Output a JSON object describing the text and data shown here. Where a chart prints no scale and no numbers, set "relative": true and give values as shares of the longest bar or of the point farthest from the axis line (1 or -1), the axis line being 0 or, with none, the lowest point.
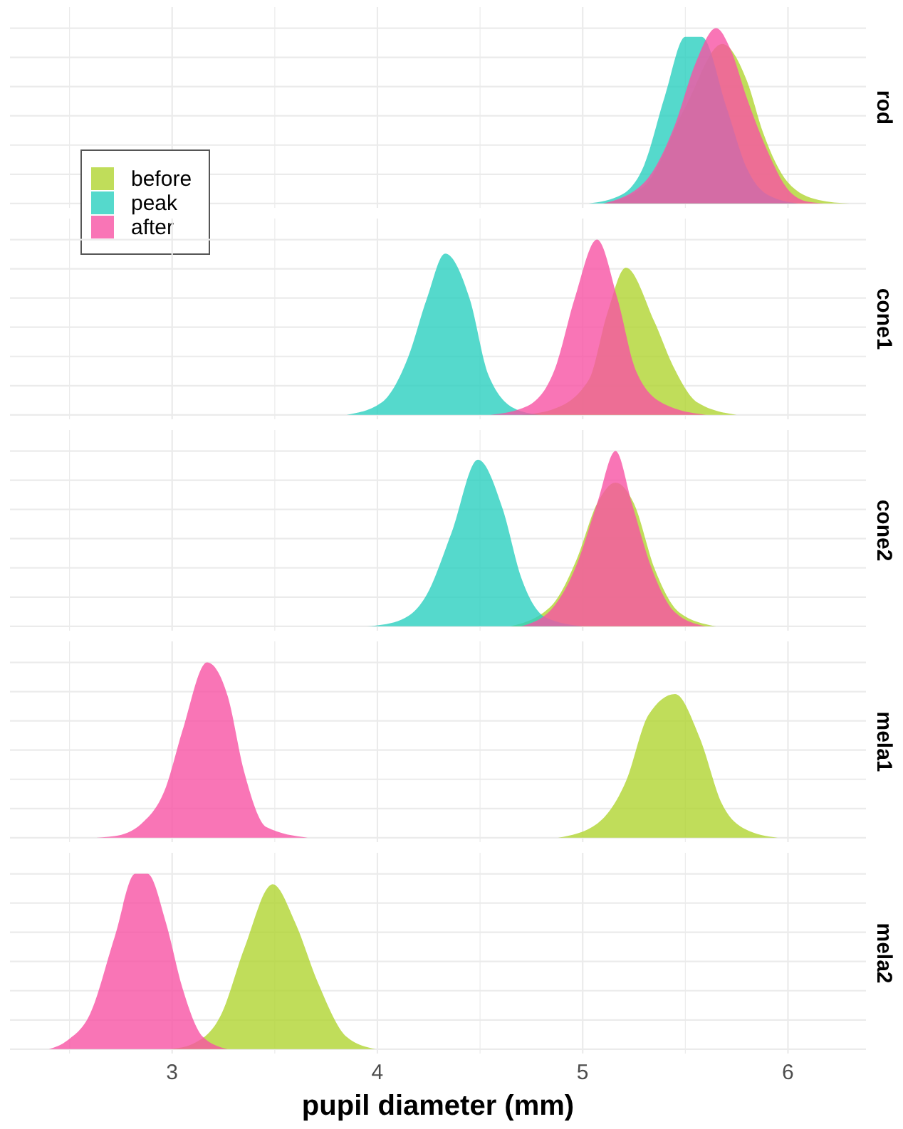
{
  "chart_data": [
    {
      "type": "area",
      "title": "rod",
      "relative": true,
      "xlim": [
        2.21,
        6.38
      ],
      "xticks": [
        {
          "value": 2.5,
          "label": null
        },
        3,
        {
          "value": 3.5,
          "label": null
        },
        4,
        {
          "value": 4.5,
          "label": null
        },
        5,
        {
          "value": 5.5,
          "label": null
        },
        6
      ],
      "grid": true,
      "tick_labels": false,
      "legend": "left",
      "series": [
        {
          "name": "before",
          "color": "#b0d531",
          "x": [
            5.1,
            5.3,
            5.5,
            5.68,
            5.8,
            5.88,
            6.0,
            6.15,
            6.3
          ],
          "values": [
            0,
            0.1,
            0.55,
            0.91,
            0.7,
            0.4,
            0.12,
            0.02,
            0
          ]
        },
        {
          "name": "peak",
          "color": "#2acfbf",
          "x": [
            5.03,
            5.19,
            5.3,
            5.4,
            5.5,
            5.58,
            5.7,
            5.8,
            5.9,
            6.05
          ],
          "values": [
            0,
            0.05,
            0.22,
            0.61,
            0.95,
            0.95,
            0.55,
            0.2,
            0.05,
            0
          ]
        },
        {
          "name": "after",
          "color": "#f752a4",
          "x": [
            5.1,
            5.3,
            5.45,
            5.55,
            5.65,
            5.72,
            5.8,
            5.9,
            6.0,
            6.1,
            6.2
          ],
          "values": [
            0,
            0.12,
            0.45,
            0.8,
            1,
            0.88,
            0.6,
            0.3,
            0.08,
            0.01,
            0
          ]
        }
      ]
    },
    {
      "type": "area",
      "title": "cone1",
      "relative": true,
      "xlim": [
        2.21,
        6.38
      ],
      "xticks": [
        {
          "value": 2.5,
          "label": null
        },
        3,
        {
          "value": 3.5,
          "label": null
        },
        4,
        {
          "value": 4.5,
          "label": null
        },
        5,
        {
          "value": 5.5,
          "label": null
        },
        6
      ],
      "grid": true,
      "tick_labels": false,
      "series": [
        {
          "color": "#b0d531",
          "x": [
            4.7,
            4.85,
            5.03,
            5.12,
            5.21,
            5.35,
            5.44,
            5.56,
            5.75
          ],
          "values": [
            0,
            0.03,
            0.2,
            0.58,
            0.84,
            0.53,
            0.28,
            0.07,
            0
          ]
        },
        {
          "color": "#2acfbf",
          "x": [
            3.85,
            4.02,
            4.15,
            4.24,
            4.33,
            4.45,
            4.54,
            4.68,
            4.8
          ],
          "values": [
            0,
            0.07,
            0.33,
            0.66,
            0.92,
            0.66,
            0.23,
            0.03,
            0
          ]
        },
        {
          "color": "#f752a4",
          "x": [
            4.55,
            4.73,
            4.87,
            4.96,
            5.07,
            5.17,
            5.26,
            5.4,
            5.6
          ],
          "values": [
            0,
            0.05,
            0.28,
            0.66,
            1,
            0.66,
            0.25,
            0.06,
            0
          ]
        }
      ]
    },
    {
      "type": "area",
      "title": "cone2",
      "relative": true,
      "xlim": [
        2.21,
        6.38
      ],
      "xticks": [
        {
          "value": 2.5,
          "label": null
        },
        3,
        {
          "value": 3.5,
          "label": null
        },
        4,
        {
          "value": 4.5,
          "label": null
        },
        5,
        {
          "value": 5.5,
          "label": null
        },
        6
      ],
      "grid": true,
      "tick_labels": false,
      "series": [
        {
          "color": "#b0d531",
          "x": [
            4.65,
            4.85,
            4.97,
            5.07,
            5.16,
            5.25,
            5.35,
            5.47,
            5.65
          ],
          "values": [
            0,
            0.12,
            0.38,
            0.7,
            0.82,
            0.7,
            0.33,
            0.08,
            0
          ]
        },
        {
          "color": "#2acfbf",
          "x": [
            3.95,
            4.1,
            4.24,
            4.36,
            4.49,
            4.61,
            4.7,
            4.82,
            5.0
          ],
          "values": [
            0,
            0.03,
            0.18,
            0.53,
            0.95,
            0.67,
            0.28,
            0.05,
            0
          ]
        },
        {
          "color": "#f752a4",
          "x": [
            4.7,
            4.85,
            4.97,
            5.07,
            5.16,
            5.24,
            5.33,
            5.45,
            5.6
          ],
          "values": [
            0,
            0.1,
            0.35,
            0.7,
            1,
            0.7,
            0.35,
            0.08,
            0
          ]
        }
      ]
    },
    {
      "type": "area",
      "title": "mela1",
      "relative": true,
      "xlim": [
        2.21,
        6.38
      ],
      "xticks": [
        {
          "value": 2.5,
          "label": null
        },
        3,
        {
          "value": 3.5,
          "label": null
        },
        4,
        {
          "value": 4.5,
          "label": null
        },
        5,
        {
          "value": 5.5,
          "label": null
        },
        6
      ],
      "grid": true,
      "tick_labels": false,
      "series": [
        {
          "color": "#b0d531",
          "x": [
            4.88,
            5.07,
            5.21,
            5.32,
            5.45,
            5.57,
            5.68,
            5.79,
            5.95
          ],
          "values": [
            0,
            0.08,
            0.32,
            0.7,
            0.82,
            0.57,
            0.19,
            0.05,
            0
          ]
        },
        {
          "color": "#f752a4",
          "x": [
            2.6,
            2.72,
            2.85,
            2.97,
            3.05,
            3.17,
            3.27,
            3.35,
            3.46,
            3.66
          ],
          "values": [
            0,
            0.01,
            0.08,
            0.29,
            0.61,
            1,
            0.81,
            0.38,
            0.06,
            0
          ]
        }
      ]
    },
    {
      "type": "area",
      "title": "mela2",
      "xlabel": "pupil diameter (mm)",
      "relative": true,
      "xlim": [
        2.21,
        6.38
      ],
      "xticks": [
        {
          "value": 2.5,
          "label": null
        },
        3,
        {
          "value": 3.5,
          "label": null
        },
        4,
        {
          "value": 4.5,
          "label": null
        },
        5,
        {
          "value": 5.5,
          "label": null
        },
        6
      ],
      "grid": true,
      "tick_labels": "x",
      "series": [
        {
          "color": "#b0d531",
          "x": [
            2.99,
            3.1,
            3.24,
            3.35,
            3.49,
            3.6,
            3.71,
            3.85,
            3.99
          ],
          "values": [
            0,
            0.03,
            0.2,
            0.57,
            0.94,
            0.72,
            0.38,
            0.07,
            0
          ]
        },
        {
          "color": "#f752a4",
          "x": [
            2.4,
            2.49,
            2.6,
            2.72,
            2.82,
            2.88,
            2.97,
            3.05,
            3.15,
            3.27
          ],
          "values": [
            0,
            0.05,
            0.2,
            0.64,
            1,
            1,
            0.72,
            0.35,
            0.07,
            0
          ]
        }
      ]
    }
  ]
}
